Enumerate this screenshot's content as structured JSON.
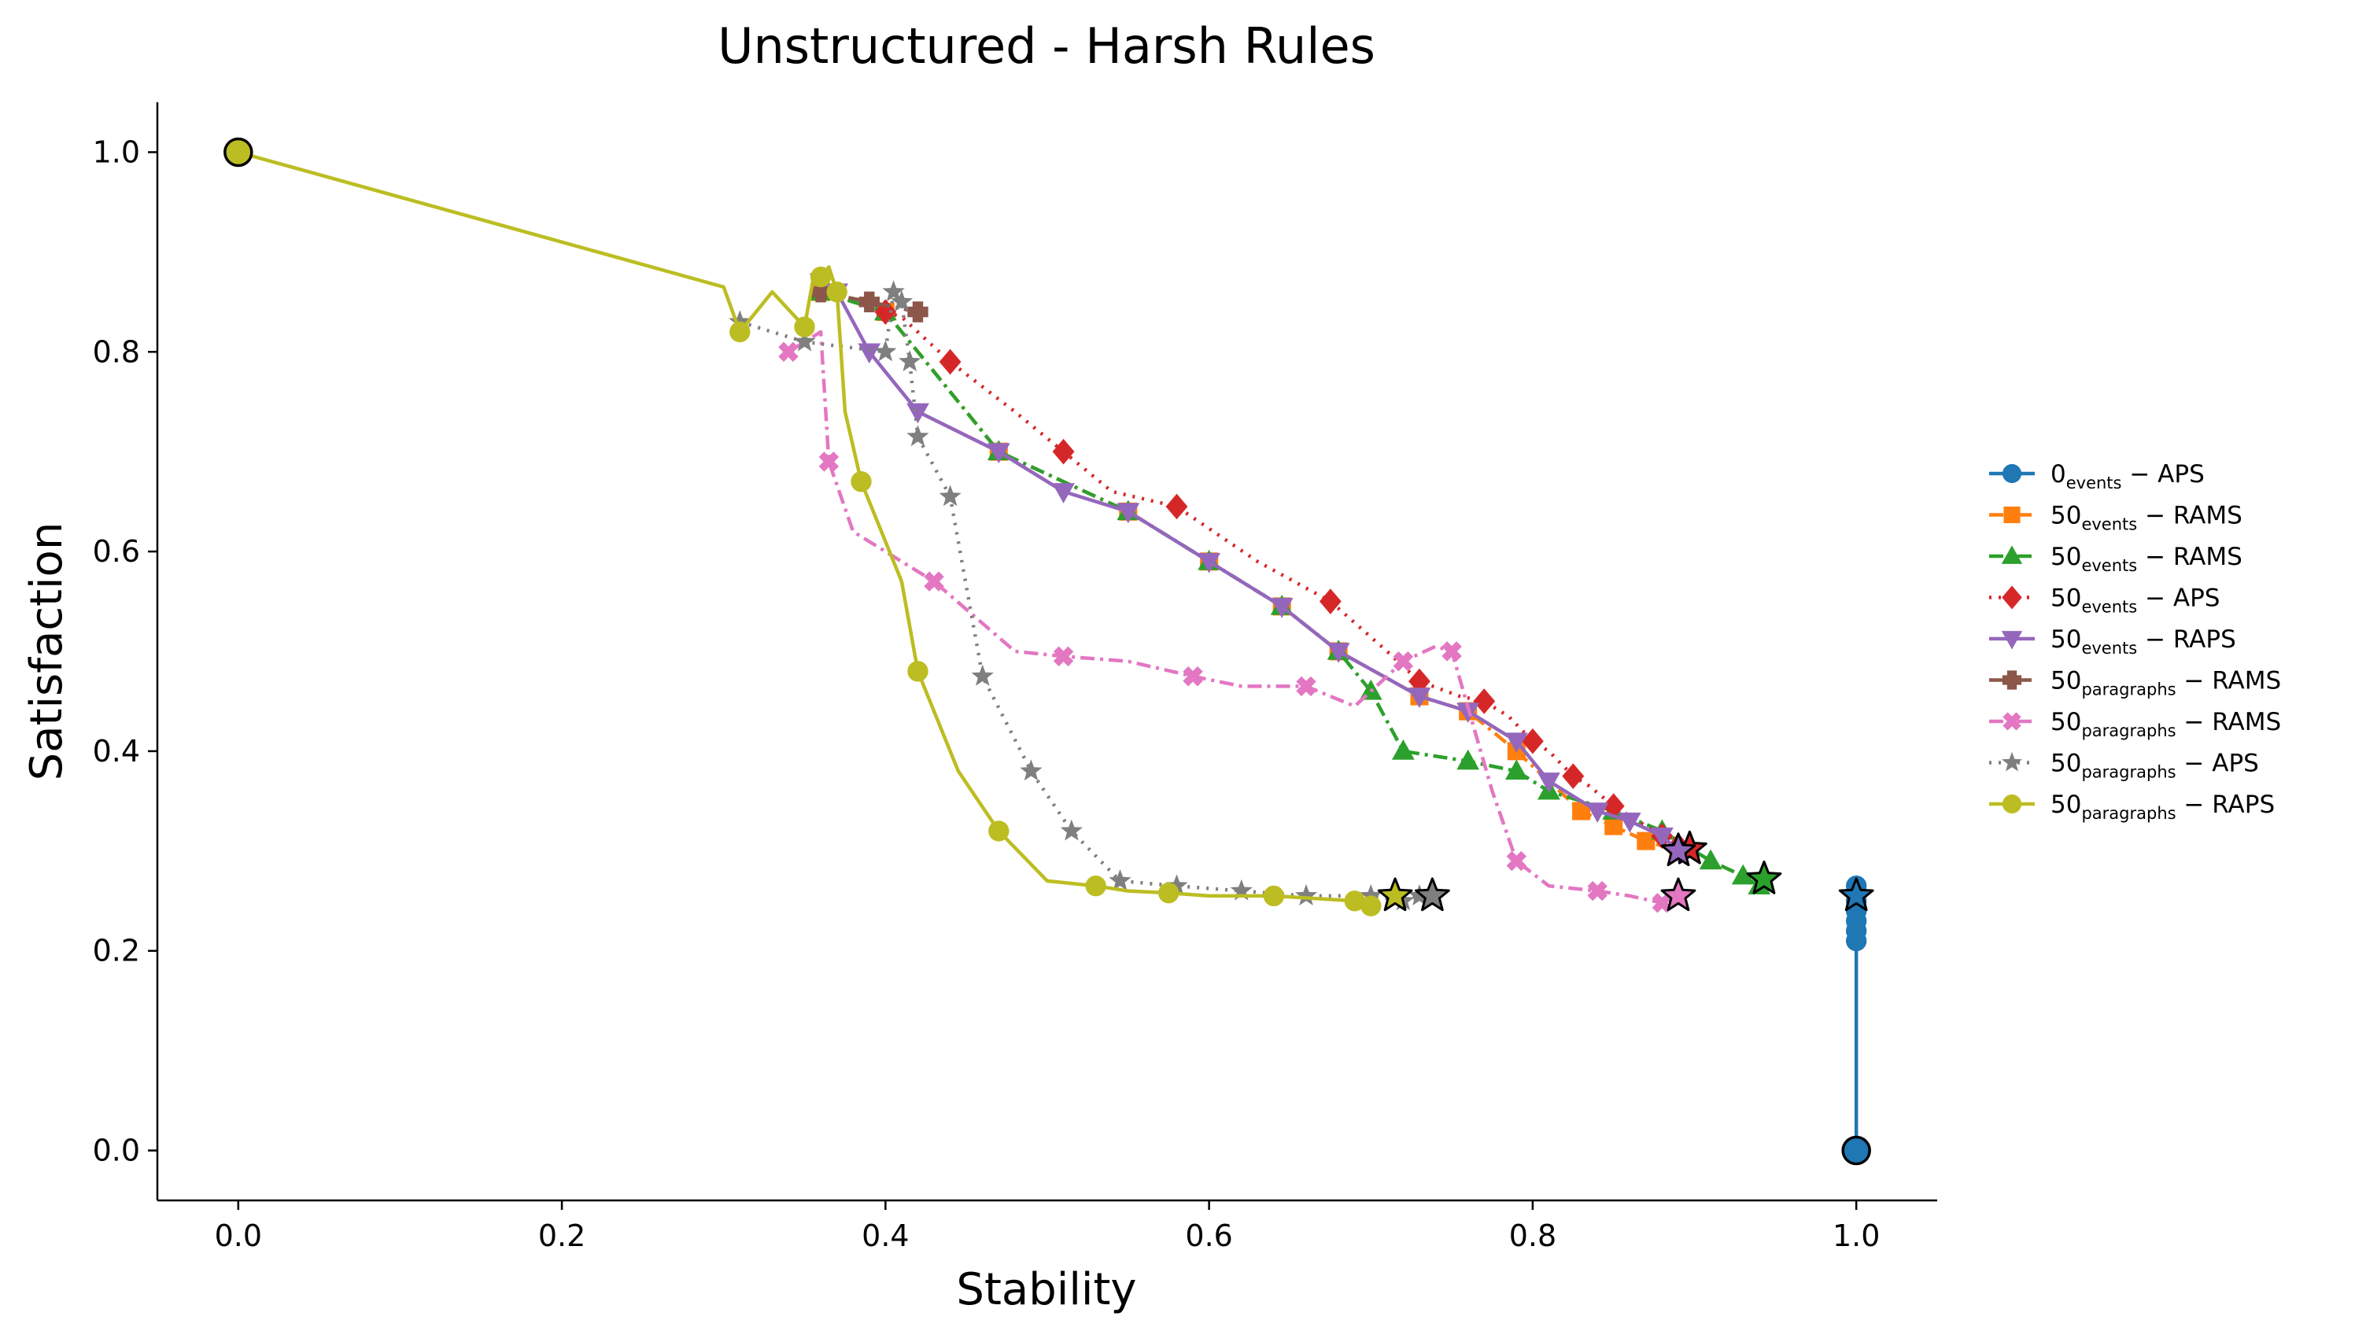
{
  "chart_data": {
    "type": "line",
    "title": "Unstructured - Harsh Rules",
    "xlabel": "Stability",
    "ylabel": "Satisfaction",
    "xlim": [
      -0.05,
      1.05
    ],
    "ylim": [
      -0.05,
      1.05
    ],
    "xticks": [
      "0.0",
      "0.2",
      "0.4",
      "0.6",
      "0.8",
      "1.0"
    ],
    "yticks": [
      "0.0",
      "0.2",
      "0.4",
      "0.6",
      "0.8",
      "1.0"
    ],
    "grid": false,
    "legend_position": "outside-right",
    "start_point": {
      "x": 0.0,
      "y": 1.0
    },
    "series": [
      {
        "name_main": "0",
        "name_sub": "events",
        "name_suffix": " − APS",
        "color": "#1f77b4",
        "marker": "circle",
        "dash": "solid",
        "x": [
          1.0,
          1.0,
          1.0,
          1.0,
          1.0,
          1.0,
          1.0
        ],
        "y": [
          0.0,
          0.21,
          0.22,
          0.23,
          0.24,
          0.25,
          0.265
        ],
        "end": {
          "x": 1.0,
          "y": 0.255
        }
      },
      {
        "name_main": "50",
        "name_sub": "events",
        "name_suffix": " − RAMS",
        "color": "#ff7f0e",
        "marker": "square",
        "dash": "dashdot",
        "x": [
          0.36,
          0.4,
          0.47,
          0.55,
          0.6,
          0.645,
          0.68,
          0.73,
          0.76,
          0.79,
          0.83,
          0.85,
          0.87,
          0.89
        ],
        "y": [
          0.86,
          0.84,
          0.7,
          0.64,
          0.59,
          0.545,
          0.5,
          0.455,
          0.44,
          0.4,
          0.34,
          0.325,
          0.31,
          0.3
        ],
        "end": null
      },
      {
        "name_main": "50",
        "name_sub": "events",
        "name_suffix": " − RAMS",
        "color": "#2ca02c",
        "marker": "triangle-up",
        "dash": "dashdot",
        "x": [
          0.36,
          0.4,
          0.47,
          0.55,
          0.6,
          0.645,
          0.68,
          0.7,
          0.72,
          0.76,
          0.79,
          0.81,
          0.85,
          0.88,
          0.91,
          0.93,
          0.94
        ],
        "y": [
          0.86,
          0.84,
          0.7,
          0.64,
          0.59,
          0.545,
          0.5,
          0.46,
          0.4,
          0.39,
          0.38,
          0.36,
          0.34,
          0.32,
          0.29,
          0.275,
          0.265
        ],
        "end": {
          "x": 0.943,
          "y": 0.272
        }
      },
      {
        "name_main": "50",
        "name_sub": "events",
        "name_suffix": " − APS",
        "color": "#d62728",
        "marker": "diamond",
        "dash": "dotted",
        "x": [
          0.4,
          0.41,
          0.44,
          0.48,
          0.51,
          0.54,
          0.58,
          0.63,
          0.675,
          0.71,
          0.73,
          0.755,
          0.77,
          0.785,
          0.8,
          0.81,
          0.825,
          0.835,
          0.85,
          0.86,
          0.88,
          0.89
        ],
        "y": [
          0.84,
          0.835,
          0.79,
          0.74,
          0.7,
          0.66,
          0.645,
          0.59,
          0.55,
          0.5,
          0.47,
          0.455,
          0.45,
          0.435,
          0.41,
          0.4,
          0.375,
          0.365,
          0.345,
          0.335,
          0.315,
          0.305
        ],
        "end": {
          "x": 0.897,
          "y": 0.302
        }
      },
      {
        "name_main": "50",
        "name_sub": "events",
        "name_suffix": " − RAPS",
        "color": "#9467bd",
        "marker": "triangle-down",
        "dash": "solid",
        "x": [
          0.36,
          0.37,
          0.39,
          0.42,
          0.47,
          0.51,
          0.55,
          0.6,
          0.645,
          0.68,
          0.73,
          0.76,
          0.79,
          0.81,
          0.84,
          0.86,
          0.88,
          0.89
        ],
        "y": [
          0.87,
          0.86,
          0.8,
          0.74,
          0.7,
          0.66,
          0.64,
          0.59,
          0.545,
          0.5,
          0.455,
          0.44,
          0.41,
          0.37,
          0.34,
          0.33,
          0.315,
          0.3
        ],
        "end": {
          "x": 0.89,
          "y": 0.3
        }
      },
      {
        "name_main": "50",
        "name_sub": "paragraphs",
        "name_suffix": " − RAMS",
        "color": "#8c564b",
        "marker": "plus",
        "dash": "dashdot",
        "x": [
          0.36,
          0.39,
          0.42
        ],
        "y": [
          0.86,
          0.85,
          0.84
        ],
        "end": null
      },
      {
        "name_main": "50",
        "name_sub": "paragraphs",
        "name_suffix": " − RAMS",
        "color": "#e377c2",
        "marker": "x",
        "dash": "dashdot",
        "x": [
          0.34,
          0.36,
          0.365,
          0.38,
          0.43,
          0.48,
          0.51,
          0.55,
          0.59,
          0.62,
          0.66,
          0.69,
          0.72,
          0.74,
          0.75,
          0.775,
          0.79,
          0.81,
          0.84,
          0.86,
          0.88
        ],
        "y": [
          0.8,
          0.82,
          0.69,
          0.62,
          0.57,
          0.5,
          0.495,
          0.49,
          0.475,
          0.465,
          0.465,
          0.445,
          0.49,
          0.505,
          0.5,
          0.36,
          0.29,
          0.265,
          0.26,
          0.255,
          0.248
        ],
        "end": {
          "x": 0.89,
          "y": 0.255
        }
      },
      {
        "name_main": "50",
        "name_sub": "paragraphs",
        "name_suffix": " − APS",
        "color": "#7f7f7f",
        "marker": "star",
        "dash": "dotted",
        "x": [
          0.31,
          0.35,
          0.4,
          0.405,
          0.41,
          0.415,
          0.42,
          0.44,
          0.46,
          0.49,
          0.515,
          0.545,
          0.58,
          0.62,
          0.66,
          0.7,
          0.72,
          0.73
        ],
        "y": [
          0.83,
          0.81,
          0.8,
          0.86,
          0.85,
          0.79,
          0.715,
          0.655,
          0.475,
          0.38,
          0.32,
          0.27,
          0.265,
          0.26,
          0.255,
          0.255,
          0.25,
          0.255
        ],
        "end": {
          "x": 0.738,
          "y": 0.255
        }
      },
      {
        "name_main": "50",
        "name_sub": "paragraphs",
        "name_suffix": " − RAPS",
        "color": "#bcbd22",
        "marker": "circle",
        "dash": "solid",
        "x": [
          0.0,
          0.3,
          0.31,
          0.33,
          0.35,
          0.355,
          0.36,
          0.365,
          0.37,
          0.375,
          0.385,
          0.41,
          0.42,
          0.445,
          0.47,
          0.5,
          0.53,
          0.55,
          0.575,
          0.6,
          0.64,
          0.67,
          0.69,
          0.7
        ],
        "y": [
          1.0,
          0.865,
          0.82,
          0.86,
          0.825,
          0.87,
          0.875,
          0.885,
          0.86,
          0.74,
          0.67,
          0.57,
          0.48,
          0.38,
          0.32,
          0.27,
          0.265,
          0.26,
          0.258,
          0.255,
          0.255,
          0.252,
          0.25,
          0.245
        ],
        "end": {
          "x": 0.715,
          "y": 0.255
        }
      }
    ]
  }
}
